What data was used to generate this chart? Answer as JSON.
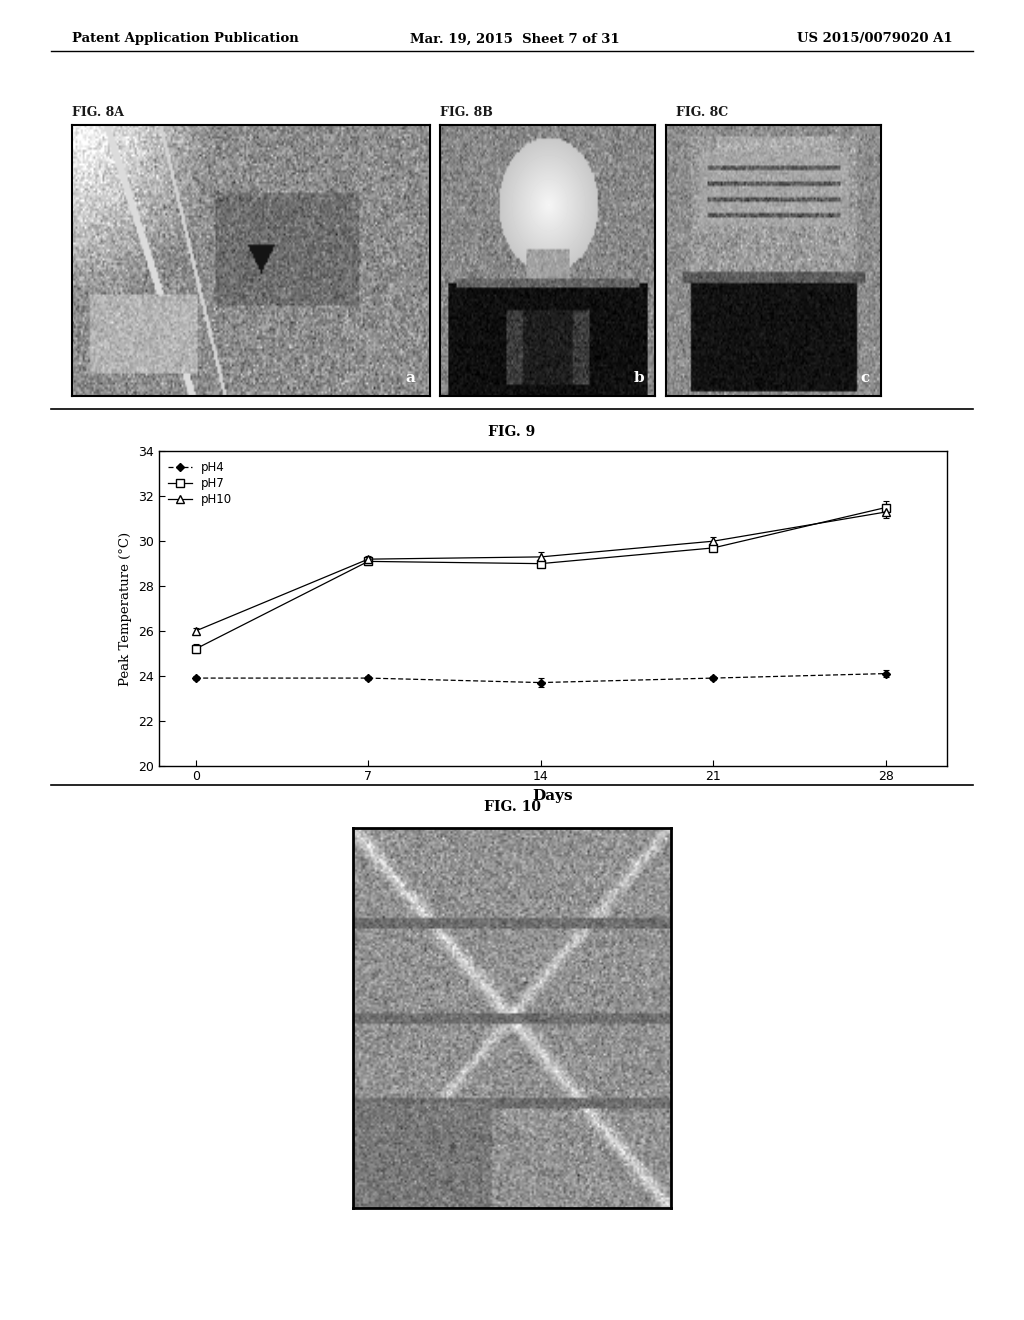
{
  "header_left": "Patent Application Publication",
  "header_mid": "Mar. 19, 2015  Sheet 7 of 31",
  "header_right": "US 2015/0079020 A1",
  "fig8a_label": "FIG. 8A",
  "fig8b_label": "FIG. 8B",
  "fig8c_label": "FIG. 8C",
  "fig9_label": "FIG. 9",
  "fig10_label": "FIG. 10",
  "xlabel": "Days",
  "ylabel": "Peak Temperature (°C)",
  "ylim": [
    20,
    34
  ],
  "yticks": [
    20,
    22,
    24,
    26,
    28,
    30,
    32,
    34
  ],
  "xticks": [
    0,
    7,
    14,
    21,
    28
  ],
  "days": [
    0,
    7,
    14,
    21,
    28
  ],
  "pH4_values": [
    23.9,
    23.9,
    23.7,
    23.9,
    24.1
  ],
  "pH4_errors": [
    0.1,
    0.1,
    0.2,
    0.1,
    0.15
  ],
  "pH7_values": [
    25.2,
    29.1,
    29.0,
    29.7,
    31.5
  ],
  "pH7_errors": [
    0.2,
    0.15,
    0.15,
    0.15,
    0.3
  ],
  "pH10_values": [
    26.0,
    29.2,
    29.3,
    30.0,
    31.3
  ],
  "pH10_errors": [
    0.15,
    0.15,
    0.2,
    0.2,
    0.25
  ],
  "bg_color": "#ffffff"
}
